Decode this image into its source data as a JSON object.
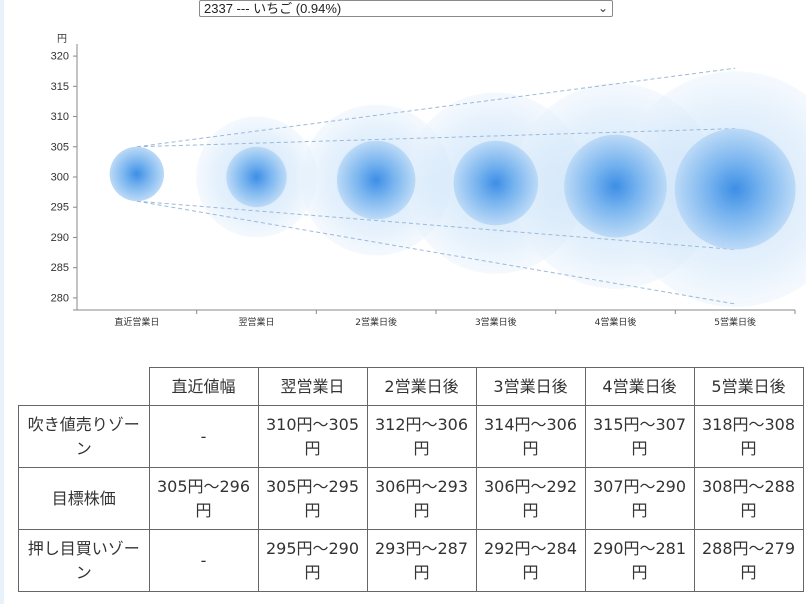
{
  "selector": {
    "selected": "2337 --- いちご (0.94%)"
  },
  "chart_data": {
    "type": "scatter",
    "yunit": "円",
    "ylim": [
      278,
      322
    ],
    "yticks": [
      320,
      315,
      310,
      305,
      300,
      295,
      290,
      285,
      280
    ],
    "categories": [
      "直近営業日",
      "翌営業日",
      "2営業日後",
      "3営業日後",
      "4営業日後",
      "5営業日後"
    ],
    "bubbles": [
      {
        "center": 300.5,
        "inner_low": 296,
        "inner_high": 305,
        "outer_low": null,
        "outer_high": null
      },
      {
        "center": 300,
        "inner_low": 295,
        "inner_high": 305,
        "outer_low": 290,
        "outer_high": 310
      },
      {
        "center": 299.5,
        "inner_low": 293,
        "inner_high": 306,
        "outer_low": 287,
        "outer_high": 312
      },
      {
        "center": 299,
        "inner_low": 292,
        "inner_high": 306,
        "outer_low": 284,
        "outer_high": 314
      },
      {
        "center": 298.5,
        "inner_low": 290,
        "inner_high": 307,
        "outer_low": 281,
        "outer_high": 315
      },
      {
        "center": 298,
        "inner_low": 288,
        "inner_high": 308,
        "outer_low": 279,
        "outer_high": 318
      }
    ],
    "colors": {
      "bubble_core": "#4a90e2",
      "bubble_edge": "#cfe3f8",
      "line": "#9bb9d9",
      "axis": "#888888"
    }
  },
  "table": {
    "headers": [
      "直近値幅",
      "翌営業日",
      "2営業日後",
      "3営業日後",
      "4営業日後",
      "5営業日後"
    ],
    "rows": [
      {
        "label": "吹き値売りゾーン",
        "cells": [
          "-",
          "310円〜305円",
          "312円〜306円",
          "314円〜306円",
          "315円〜307円",
          "318円〜308円"
        ]
      },
      {
        "label": "目標株価",
        "cells": [
          "305円〜296円",
          "305円〜295円",
          "306円〜293円",
          "306円〜292円",
          "307円〜290円",
          "308円〜288円"
        ]
      },
      {
        "label": "押し目買いゾーン",
        "cells": [
          "-",
          "295円〜290円",
          "293円〜287円",
          "292円〜284円",
          "290円〜281円",
          "288円〜279円"
        ]
      }
    ]
  }
}
